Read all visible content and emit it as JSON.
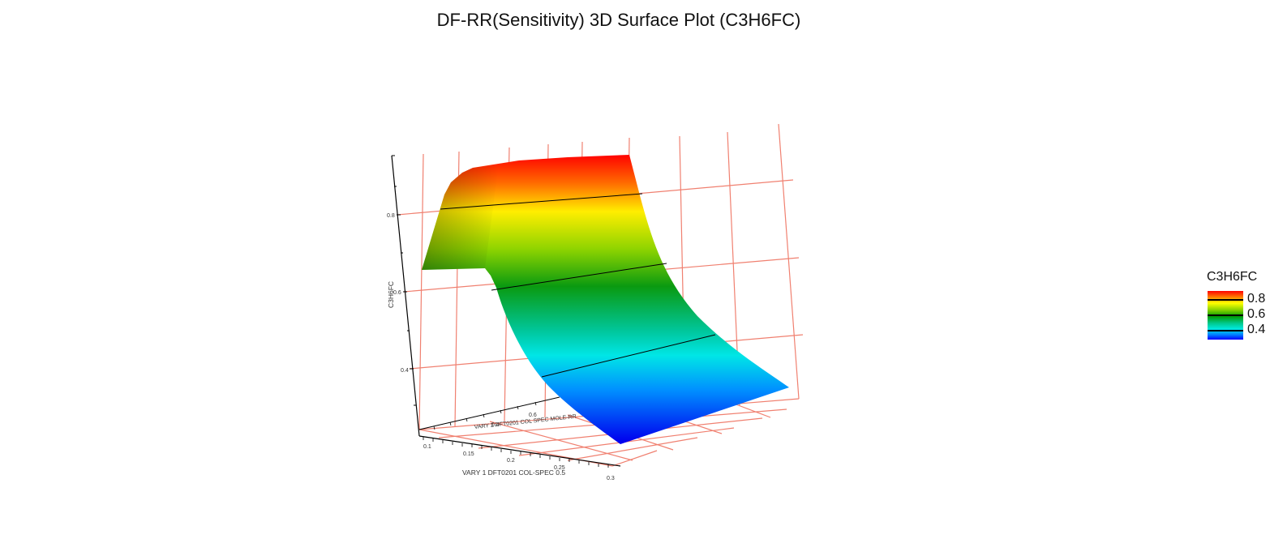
{
  "chart_data": {
    "type": "surface",
    "title": "DF-RR(Sensitivity) 3D Surface Plot (C3H6FC)",
    "x_label": "VARY 1 DFT0201 COL-SPEC 0.5",
    "x_ticks": [
      "0.1",
      "0.15",
      "0.2",
      "0.25",
      "0.3"
    ],
    "y_label": "VARY 2 DFT0201 COL SPEC MOLE-RR",
    "y_ticks": [
      "0.4",
      "0.6"
    ],
    "z_label": "C3H6FC",
    "z_ticks": [
      "0.8",
      "0.6",
      "0.4"
    ],
    "z_range": [
      0.25,
      0.95
    ],
    "contours": [
      0.8,
      0.6,
      0.4
    ],
    "surface_profile": {
      "x": [
        0.1,
        0.12,
        0.13,
        0.14,
        0.16,
        0.18,
        0.2,
        0.22,
        0.24,
        0.26,
        0.28,
        0.3
      ],
      "z": [
        0.81,
        0.81,
        0.79,
        0.72,
        0.6,
        0.51,
        0.45,
        0.41,
        0.38,
        0.36,
        0.35,
        0.34
      ]
    },
    "colorscale": [
      "#0000ff",
      "#0080ff",
      "#00e8e0",
      "#00c88a",
      "#009a00",
      "#7fcf00",
      "#ffff00",
      "#ff8a00",
      "#ff0000"
    ],
    "grid": true,
    "grid_color": "#f08070",
    "legend": {
      "title": "C3H6FC",
      "ticks": [
        "0.8",
        "0.6",
        "0.4"
      ],
      "placement": "right"
    }
  }
}
